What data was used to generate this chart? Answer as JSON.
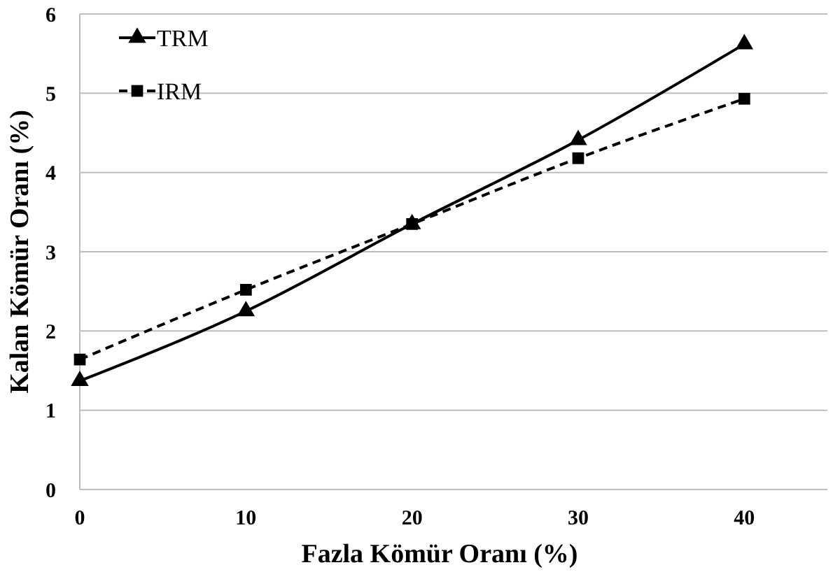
{
  "chart_data": {
    "type": "line",
    "xlabel": "Fazla Kömür Oranı (%)",
    "ylabel": "Kalan Kömür Oranı (%)",
    "x": [
      0,
      10,
      20,
      30,
      40
    ],
    "series": [
      {
        "name": "TRM",
        "color": "#000000",
        "values": [
          1.37,
          2.25,
          3.35,
          4.41,
          5.62
        ],
        "marker": "triangle",
        "line_style": "solid"
      },
      {
        "name": "IRM",
        "color": "#000000",
        "values": [
          1.64,
          2.52,
          3.35,
          4.18,
          4.93
        ],
        "marker": "square",
        "line_style": "dashed"
      }
    ],
    "xlim": [
      0,
      45
    ],
    "xticks": [
      0,
      10,
      20,
      30,
      40
    ],
    "ylim": [
      0,
      6
    ],
    "yticks": [
      0,
      1,
      2,
      3,
      4,
      5,
      6
    ],
    "grid": "y",
    "legend": "top left"
  }
}
